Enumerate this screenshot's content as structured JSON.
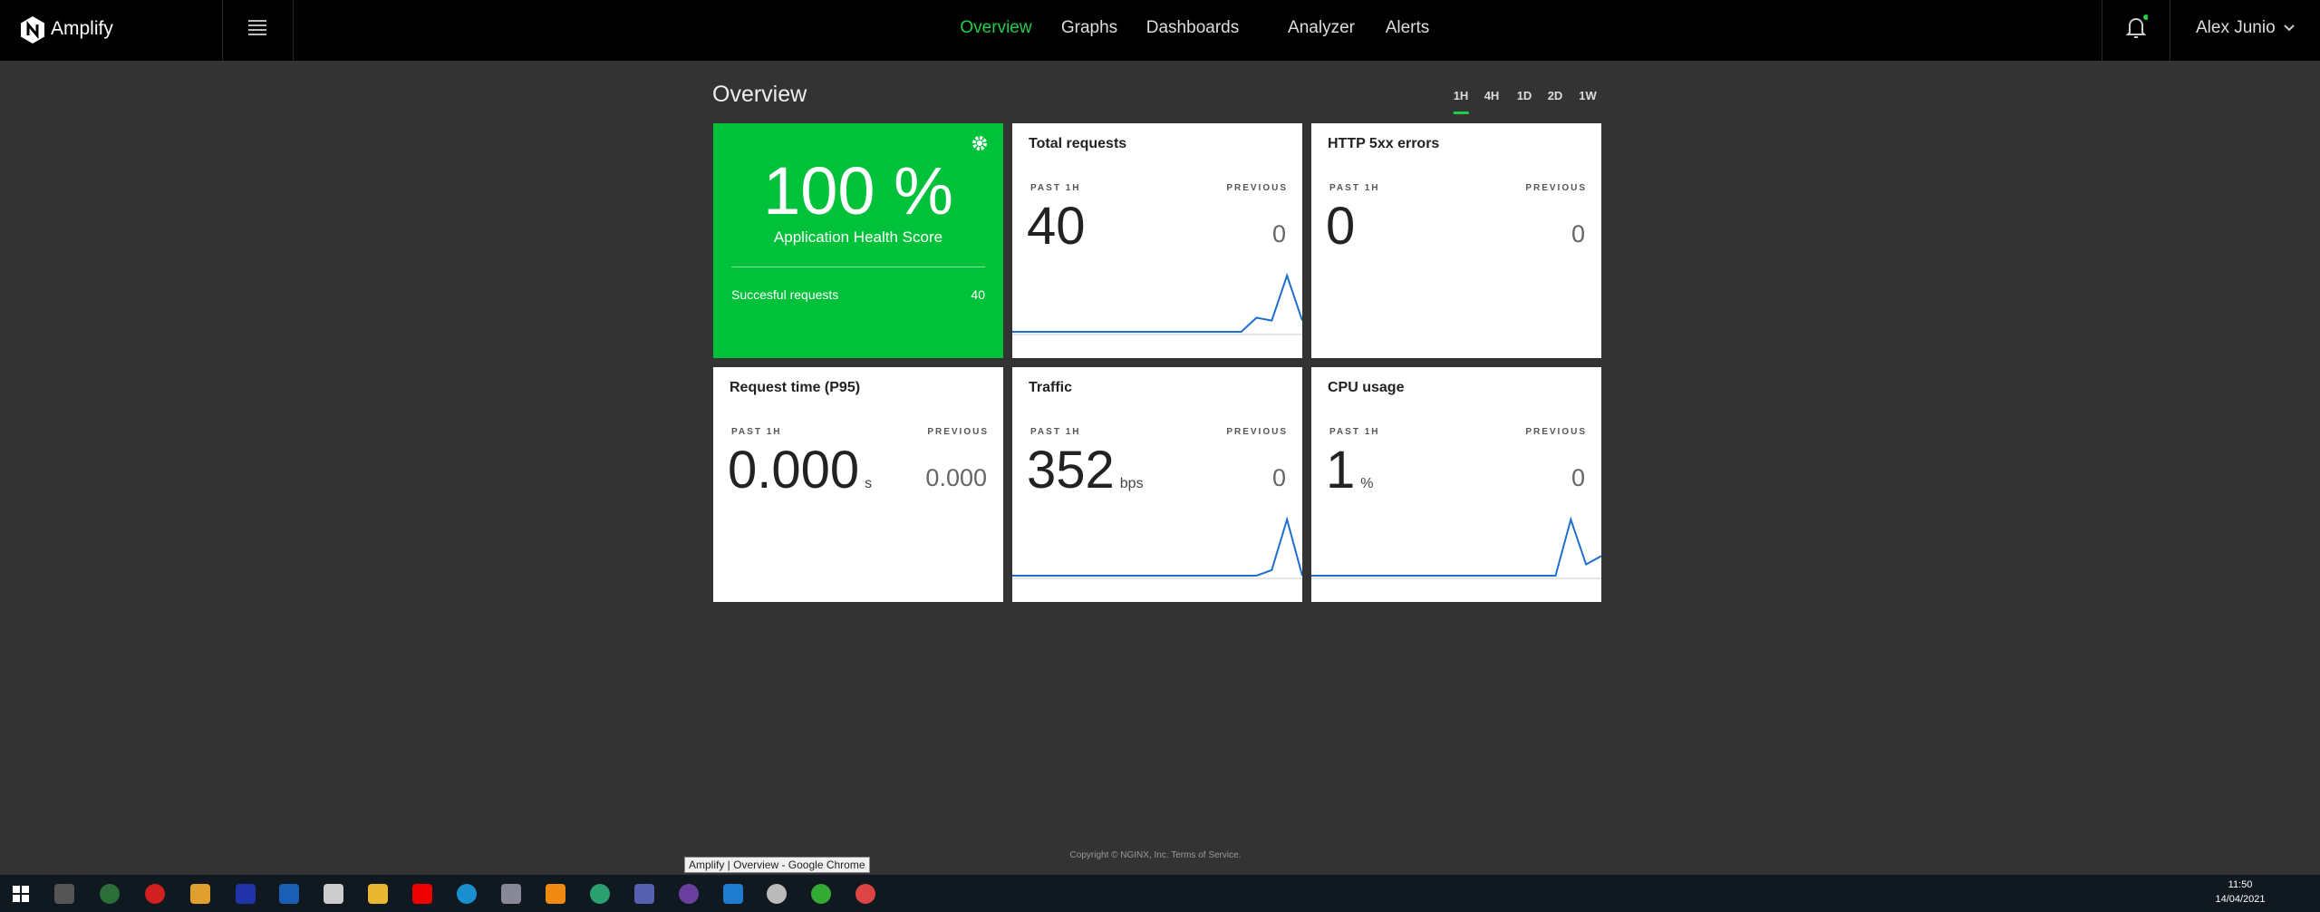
{
  "nav": {
    "brand": "Amplify",
    "items": [
      "Overview",
      "Graphs",
      "Dashboards",
      "Analyzer",
      "Alerts"
    ],
    "active": 0,
    "user": "Alex Junio"
  },
  "page": {
    "title": "Overview",
    "ranges": [
      "1H",
      "4H",
      "1D",
      "2D",
      "1W"
    ],
    "active_range": 0
  },
  "health": {
    "value": "100 %",
    "label": "Application Health Score",
    "metric": "Succesful requests",
    "metric_value": "40"
  },
  "cards": [
    {
      "title": "Total requests",
      "current_label": "PAST 1H",
      "previous_label": "PREVIOUS",
      "current": "40",
      "previous": "0",
      "sparkline": [
        0,
        0,
        0,
        0,
        0,
        0,
        0,
        0,
        0,
        0,
        0,
        0,
        0,
        0,
        0,
        0,
        0.25,
        0.2,
        1,
        0.2
      ]
    },
    {
      "title": "HTTP 5xx errors",
      "current_label": "PAST 1H",
      "previous_label": "PREVIOUS",
      "current": "0",
      "previous": "0"
    },
    {
      "title": "Request time (P95)",
      "current_label": "PAST 1H",
      "previous_label": "PREVIOUS",
      "current": "0.000",
      "unit": "s",
      "previous": "0.000"
    },
    {
      "title": "Traffic",
      "current_label": "PAST 1H",
      "previous_label": "PREVIOUS",
      "current": "352",
      "unit": "bps",
      "previous": "0",
      "sparkline": [
        0,
        0,
        0,
        0,
        0,
        0,
        0,
        0,
        0,
        0,
        0,
        0,
        0,
        0,
        0,
        0,
        0,
        0.1,
        1,
        0
      ]
    },
    {
      "title": "CPU usage",
      "current_label": "PAST 1H",
      "previous_label": "PREVIOUS",
      "current": "1",
      "unit": "%",
      "previous": "0",
      "sparkline": [
        0,
        0,
        0,
        0,
        0,
        0,
        0,
        0,
        0,
        0,
        0,
        0,
        0,
        0,
        0,
        0,
        0,
        1,
        0.2,
        0.35
      ]
    }
  ],
  "footer": "Copyright © NGINX, Inc. Terms of Service.",
  "taskbar": {
    "tooltip": "Amplify | Overview - Google Chrome",
    "time": "11:50",
    "date": "14/04/2021"
  }
}
